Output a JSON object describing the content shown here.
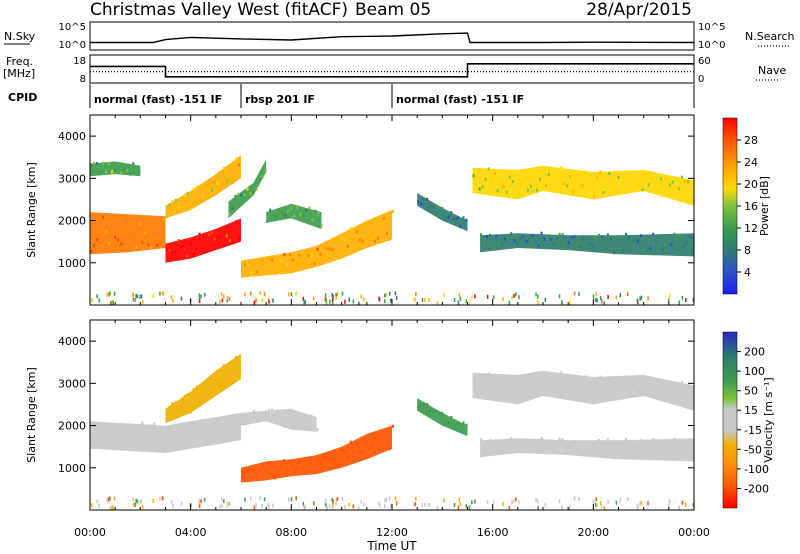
{
  "header": {
    "title": "Christmas Valley West (fitACF)",
    "beam": "Beam 05",
    "date": "28/Apr/2015"
  },
  "colors": {
    "power_scale": [
      "#1a1aff",
      "#2a4fcf",
      "#2e7d6e",
      "#3e9d4e",
      "#7ec43c",
      "#ffd700",
      "#ffb000",
      "#ff7a00",
      "#ff4500",
      "#ff0000"
    ],
    "velocity_scale": [
      "#2828c8",
      "#2e7d6e",
      "#3e9d4e",
      "#7ec43c",
      "#c8c8c8",
      "#f0b000",
      "#ff8c00",
      "#ff5500",
      "#ff0000"
    ]
  },
  "chart_data": [
    {
      "type": "line",
      "name": "nsky-nsearch-panel",
      "left_label": "N.Sky",
      "right_label": "N.Search",
      "left_ticks": [
        "10^5",
        "10^0"
      ],
      "right_ticks": [
        "10^5",
        "10^0"
      ],
      "x": [
        0,
        2.5,
        3,
        4,
        6,
        8,
        10,
        12,
        14,
        15,
        15.1,
        18,
        20,
        24
      ],
      "y": [
        0.45,
        0.45,
        0.65,
        0.8,
        0.7,
        0.62,
        0.85,
        0.9,
        1.05,
        1.1,
        0.45,
        0.45,
        0.47,
        0.45
      ],
      "ylim": [
        0,
        1.8
      ]
    },
    {
      "type": "line",
      "name": "freq-nave-panel",
      "left_label_top": "Freq.",
      "left_label_bottom": "[MHz]",
      "right_label": "Nave",
      "left_ticks": [
        "18",
        "8"
      ],
      "right_ticks": [
        "60",
        "0"
      ],
      "series": [
        {
          "x": [
            0,
            3,
            3,
            15,
            15,
            24
          ],
          "y": [
            14,
            14,
            10,
            10,
            15,
            15
          ]
        },
        {
          "x": [
            0,
            24
          ],
          "y": [
            12,
            12
          ]
        }
      ],
      "ylim": [
        8,
        18
      ]
    },
    {
      "type": "table",
      "name": "cpid-bar",
      "label": "CPID",
      "segments": [
        {
          "start": 0,
          "end": 6,
          "text": "normal (fast) -151 IF"
        },
        {
          "start": 6,
          "end": 12,
          "text": "rbsp 201 IF"
        },
        {
          "start": 12,
          "end": 24,
          "text": "normal (fast) -151 IF"
        }
      ]
    },
    {
      "type": "heatmap",
      "name": "power-panel",
      "ylabel": "Slant Range [km]",
      "xlim": [
        0,
        24
      ],
      "ylim": [
        0,
        4500
      ],
      "yticks": [
        1000,
        2000,
        3000,
        4000
      ],
      "colorbar": {
        "label": "Power [dB]",
        "ticks": [
          "4",
          "8",
          "12",
          "16",
          "20",
          "24",
          "28"
        ]
      },
      "bands": [
        {
          "t": [
            0,
            1.5,
            3
          ],
          "lo": [
            1200,
            1250,
            1350
          ],
          "hi": [
            2200,
            2150,
            2100
          ],
          "value": 22
        },
        {
          "t": [
            0,
            1,
            2
          ],
          "lo": [
            3050,
            3100,
            3050
          ],
          "hi": [
            3350,
            3400,
            3300
          ],
          "value": 12
        },
        {
          "t": [
            3,
            4,
            5,
            6
          ],
          "lo": [
            1000,
            1100,
            1300,
            1500
          ],
          "hi": [
            1450,
            1600,
            1800,
            2050
          ],
          "value": 27
        },
        {
          "t": [
            3,
            4,
            5,
            6
          ],
          "lo": [
            2050,
            2250,
            2600,
            3000
          ],
          "hi": [
            2350,
            2700,
            3100,
            3550
          ],
          "value": 18
        },
        {
          "t": [
            5.5,
            6.5,
            7
          ],
          "lo": [
            2050,
            2600,
            3150
          ],
          "hi": [
            2450,
            2900,
            3450
          ],
          "value": 12
        },
        {
          "t": [
            6,
            7,
            8,
            9,
            10,
            11,
            12
          ],
          "lo": [
            650,
            700,
            750,
            900,
            1100,
            1350,
            1550
          ],
          "hi": [
            1050,
            1150,
            1250,
            1400,
            1700,
            2000,
            2250
          ],
          "value": 20
        },
        {
          "t": [
            7,
            8,
            9.2
          ],
          "lo": [
            1950,
            2050,
            1800
          ],
          "hi": [
            2200,
            2400,
            2200
          ],
          "value": 12
        },
        {
          "t": [
            13,
            14,
            15
          ],
          "lo": [
            2350,
            2000,
            1750
          ],
          "hi": [
            2650,
            2300,
            2000
          ],
          "value": 8
        },
        {
          "t": [
            15.2,
            17,
            18,
            20,
            22,
            24
          ],
          "lo": [
            2650,
            2500,
            2700,
            2500,
            2700,
            2350
          ],
          "hi": [
            3250,
            3200,
            3300,
            3150,
            3200,
            2950
          ],
          "value": 16
        },
        {
          "t": [
            15.5,
            17,
            19,
            21,
            24
          ],
          "lo": [
            1250,
            1350,
            1300,
            1200,
            1150
          ],
          "hi": [
            1650,
            1700,
            1650,
            1650,
            1700
          ],
          "value": 8
        }
      ]
    },
    {
      "type": "heatmap",
      "name": "velocity-panel",
      "ylabel": "Slant Range [km]",
      "xlabel": "Time UT",
      "xlim": [
        0,
        24
      ],
      "ylim": [
        0,
        4500
      ],
      "yticks": [
        1000,
        2000,
        3000,
        4000
      ],
      "xticks": [
        "00:00",
        "04:00",
        "08:00",
        "12:00",
        "16:00",
        "20:00",
        "00:00"
      ],
      "colorbar": {
        "label": "Velocity [m s⁻¹]",
        "ticks": [
          "200",
          "100",
          "50",
          "15",
          "-15",
          "-50",
          "-100",
          "-200"
        ]
      },
      "bands": [
        {
          "t": [
            0,
            1.5,
            3,
            4,
            5,
            6
          ],
          "lo": [
            1450,
            1400,
            1350,
            1450,
            1550,
            1650
          ],
          "hi": [
            2100,
            2050,
            2000,
            2100,
            2200,
            2300
          ],
          "value": 0
        },
        {
          "t": [
            3,
            4,
            5,
            6
          ],
          "lo": [
            2050,
            2300,
            2700,
            3100
          ],
          "hi": [
            2400,
            2800,
            3300,
            3700
          ],
          "value": -30
        },
        {
          "t": [
            6,
            7,
            8,
            9
          ],
          "lo": [
            2000,
            2100,
            1900,
            1850
          ],
          "hi": [
            2300,
            2350,
            2400,
            2200
          ],
          "value": -10
        },
        {
          "t": [
            6,
            7,
            8,
            9,
            10,
            11,
            12
          ],
          "lo": [
            650,
            700,
            800,
            850,
            1000,
            1200,
            1450
          ],
          "hi": [
            1000,
            1150,
            1200,
            1300,
            1500,
            1800,
            2000
          ],
          "value": -120
        },
        {
          "t": [
            13,
            14,
            15
          ],
          "lo": [
            2350,
            2000,
            1750
          ],
          "hi": [
            2650,
            2300,
            2000
          ],
          "value": 40
        },
        {
          "t": [
            15.2,
            17,
            18,
            20,
            22,
            24
          ],
          "lo": [
            2650,
            2500,
            2700,
            2500,
            2700,
            2350
          ],
          "hi": [
            3250,
            3200,
            3300,
            3150,
            3200,
            2950
          ],
          "value": 0
        },
        {
          "t": [
            15.5,
            17,
            19,
            21,
            24
          ],
          "lo": [
            1250,
            1350,
            1300,
            1200,
            1150
          ],
          "hi": [
            1650,
            1700,
            1650,
            1650,
            1700
          ],
          "value": 0
        }
      ]
    }
  ]
}
